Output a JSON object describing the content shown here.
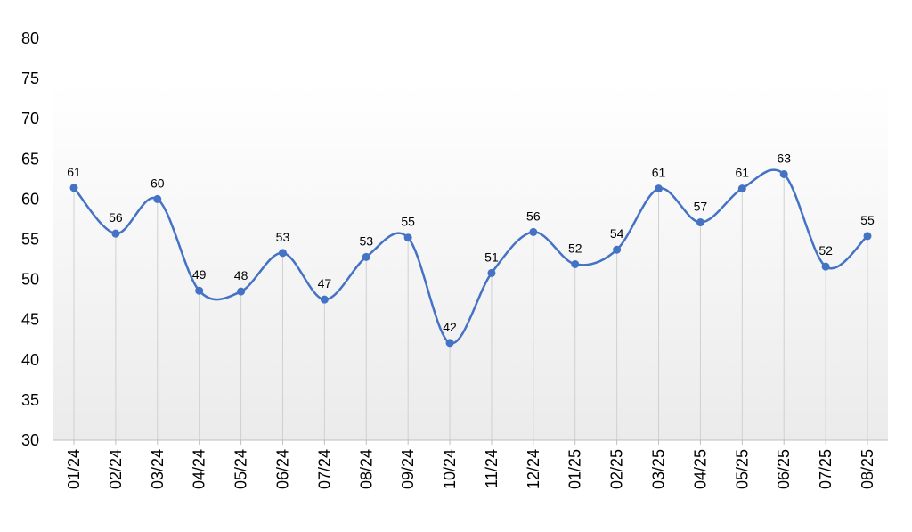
{
  "chart_data": {
    "type": "line",
    "smooth": true,
    "categories": [
      "01/24",
      "02/24",
      "03/24",
      "04/24",
      "05/24",
      "06/24",
      "07/24",
      "08/24",
      "09/24",
      "10/24",
      "11/24",
      "12/24",
      "01/25",
      "02/25",
      "03/25",
      "04/25",
      "05/25",
      "06/25",
      "07/25",
      "08/25"
    ],
    "series": [
      {
        "values": [
          61.4,
          55.7,
          60.0,
          48.6,
          48.5,
          53.3,
          47.5,
          52.8,
          55.2,
          42.1,
          50.8,
          55.9,
          51.9,
          53.7,
          61.3,
          57.1,
          61.3,
          63.1,
          51.6,
          55.4
        ],
        "labels": [
          "61",
          "56",
          "60",
          "49",
          "48",
          "53",
          "47",
          "53",
          "55",
          "42",
          "51",
          "56",
          "52",
          "54",
          "61",
          "57",
          "61",
          "63",
          "52",
          "55"
        ]
      }
    ],
    "ylim": [
      30,
      80
    ],
    "yticks": [
      "30",
      "35",
      "40",
      "45",
      "50",
      "55",
      "60",
      "65",
      "70",
      "75",
      "80"
    ],
    "grid": "vertical drop lines",
    "legend": "none",
    "title": "",
    "xlabel": "",
    "ylabel": "",
    "colors": {
      "line": "#4472C4",
      "marker": "#4472C4",
      "drop_line": "#d0d0d0",
      "axis": "#bfbfbf",
      "plot_gradient_top": "#ffffff",
      "plot_gradient_bottom": "#ebebeb"
    }
  }
}
